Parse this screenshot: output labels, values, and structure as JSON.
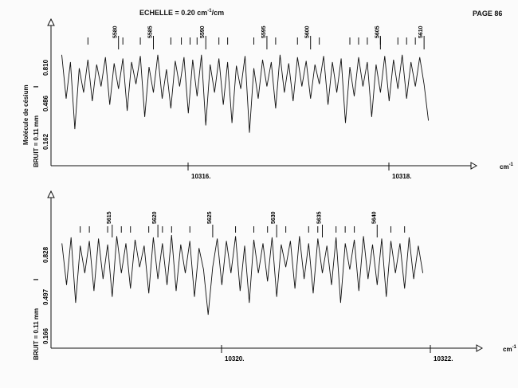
{
  "page_label": "PAGE 86",
  "scale_label": "ECHELLE = 0.20 cm",
  "scale_exponent": "-1",
  "scale_unit_suffix": "/cm",
  "molecule_label": "Molécule de césium",
  "chart_data": [
    {
      "type": "line",
      "noise_label": "BRUIT = 0.11 mm",
      "intensity_marker": "I",
      "y_tick_labels": [
        "0.810",
        "0.486",
        "0.162"
      ],
      "x_tick_labels": [
        "10316.",
        "10318."
      ],
      "x_unit": "cm",
      "x_unit_exponent": "-1",
      "xlim": [
        10314.2,
        10318.7
      ],
      "ylim": [
        0.1,
        0.95
      ],
      "ref_numbers": [
        {
          "label": "5580",
          "x": 10314.9
        },
        {
          "label": "5585",
          "x": 10315.3
        },
        {
          "label": "5590",
          "x": 10315.9
        },
        {
          "label": "5595",
          "x": 10316.6
        },
        {
          "label": "5600",
          "x": 10317.1
        },
        {
          "label": "5605",
          "x": 10317.9
        },
        {
          "label": "5610",
          "x": 10318.4
        }
      ],
      "marker_positions": [
        10314.55,
        10314.95,
        10315.15,
        10315.5,
        10315.62,
        10315.72,
        10315.8,
        10316.05,
        10316.15,
        10316.45,
        10316.7,
        10316.95,
        10317.2,
        10317.55,
        10317.65,
        10317.75,
        10317.9,
        10318.1,
        10318.2,
        10318.3
      ],
      "x": [
        10314.25,
        10314.3,
        10314.35,
        10314.4,
        10314.45,
        10314.5,
        10314.55,
        10314.6,
        10314.65,
        10314.7,
        10314.75,
        10314.8,
        10314.85,
        10314.9,
        10314.95,
        10315.0,
        10315.05,
        10315.1,
        10315.15,
        10315.2,
        10315.25,
        10315.3,
        10315.35,
        10315.4,
        10315.45,
        10315.5,
        10315.55,
        10315.6,
        10315.65,
        10315.7,
        10315.75,
        10315.8,
        10315.85,
        10315.9,
        10315.95,
        10316.0,
        10316.05,
        10316.1,
        10316.15,
        10316.2,
        10316.25,
        10316.3,
        10316.35,
        10316.4,
        10316.45,
        10316.5,
        10316.55,
        10316.6,
        10316.65,
        10316.7,
        10316.75,
        10316.8,
        10316.85,
        10316.9,
        10316.95,
        10317.0,
        10317.05,
        10317.1,
        10317.15,
        10317.2,
        10317.25,
        10317.3,
        10317.35,
        10317.4,
        10317.45,
        10317.5,
        10317.55,
        10317.6,
        10317.65,
        10317.7,
        10317.75,
        10317.8,
        10317.85,
        10317.9,
        10317.95,
        10318.0,
        10318.05,
        10318.1,
        10318.15,
        10318.2,
        10318.25,
        10318.3,
        10318.35,
        10318.4,
        10318.45
      ],
      "y": [
        0.86,
        0.5,
        0.8,
        0.25,
        0.75,
        0.55,
        0.82,
        0.48,
        0.78,
        0.6,
        0.84,
        0.45,
        0.79,
        0.58,
        0.83,
        0.4,
        0.8,
        0.62,
        0.85,
        0.35,
        0.76,
        0.55,
        0.86,
        0.5,
        0.74,
        0.42,
        0.81,
        0.6,
        0.84,
        0.38,
        0.82,
        0.52,
        0.86,
        0.28,
        0.78,
        0.55,
        0.83,
        0.45,
        0.8,
        0.3,
        0.77,
        0.58,
        0.85,
        0.22,
        0.75,
        0.5,
        0.82,
        0.6,
        0.8,
        0.42,
        0.86,
        0.55,
        0.79,
        0.48,
        0.84,
        0.6,
        0.81,
        0.5,
        0.78,
        0.62,
        0.85,
        0.45,
        0.8,
        0.55,
        0.83,
        0.3,
        0.76,
        0.52,
        0.84,
        0.6,
        0.8,
        0.35,
        0.78,
        0.55,
        0.85,
        0.48,
        0.82,
        0.58,
        0.86,
        0.5,
        0.8,
        0.6,
        0.84,
        0.62,
        0.32
      ]
    },
    {
      "type": "line",
      "noise_label": "BRUIT = 0.11 mm",
      "intensity_marker": "I",
      "y_tick_labels": [
        "0.828",
        "0.497",
        "0.166"
      ],
      "x_tick_labels": [
        "10320.",
        "10322."
      ],
      "x_unit": "cm",
      "x_unit_exponent": "-1",
      "xlim": [
        10318.3,
        10322.6
      ],
      "ylim": [
        0.1,
        0.95
      ],
      "ref_numbers": [
        {
          "label": "5615",
          "x": 10318.9
        },
        {
          "label": "5620",
          "x": 10319.4
        },
        {
          "label": "5625",
          "x": 10320.0
        },
        {
          "label": "5630",
          "x": 10320.7
        },
        {
          "label": "5635",
          "x": 10321.2
        },
        {
          "label": "5640",
          "x": 10321.8
        }
      ],
      "marker_positions": [
        10318.55,
        10318.65,
        10318.85,
        10319.0,
        10319.1,
        10319.3,
        10319.45,
        10319.55,
        10319.75,
        10320.25,
        10320.45,
        10320.6,
        10320.8,
        10321.05,
        10321.15,
        10321.35,
        10321.45,
        10321.55,
        10321.95,
        10322.1
      ],
      "x": [
        10318.35,
        10318.4,
        10318.45,
        10318.5,
        10318.55,
        10318.6,
        10318.65,
        10318.7,
        10318.75,
        10318.8,
        10318.85,
        10318.9,
        10318.95,
        10319.0,
        10319.05,
        10319.1,
        10319.15,
        10319.2,
        10319.25,
        10319.3,
        10319.35,
        10319.4,
        10319.45,
        10319.5,
        10319.55,
        10319.6,
        10319.65,
        10319.7,
        10319.75,
        10319.8,
        10319.85,
        10319.9,
        10319.95,
        10320.0,
        10320.05,
        10320.1,
        10320.15,
        10320.2,
        10320.25,
        10320.3,
        10320.35,
        10320.4,
        10320.45,
        10320.5,
        10320.55,
        10320.6,
        10320.65,
        10320.7,
        10320.75,
        10320.8,
        10320.85,
        10320.9,
        10320.95,
        10321.0,
        10321.05,
        10321.1,
        10321.15,
        10321.2,
        10321.25,
        10321.3,
        10321.35,
        10321.4,
        10321.45,
        10321.5,
        10321.55,
        10321.6,
        10321.65,
        10321.7,
        10321.75,
        10321.8,
        10321.85,
        10321.9,
        10321.95,
        10322.0,
        10322.05,
        10322.1,
        10322.15,
        10322.2,
        10322.25,
        10322.3
      ],
      "y": [
        0.8,
        0.45,
        0.85,
        0.3,
        0.78,
        0.55,
        0.82,
        0.4,
        0.84,
        0.5,
        0.79,
        0.35,
        0.86,
        0.55,
        0.8,
        0.42,
        0.83,
        0.6,
        0.78,
        0.38,
        0.85,
        0.5,
        0.8,
        0.45,
        0.87,
        0.4,
        0.79,
        0.55,
        0.82,
        0.35,
        0.76,
        0.58,
        0.2,
        0.6,
        0.84,
        0.45,
        0.82,
        0.55,
        0.86,
        0.4,
        0.78,
        0.3,
        0.83,
        0.55,
        0.8,
        0.48,
        0.85,
        0.35,
        0.79,
        0.6,
        0.82,
        0.42,
        0.86,
        0.5,
        0.8,
        0.38,
        0.84,
        0.55,
        0.78,
        0.45,
        0.85,
        0.3,
        0.8,
        0.58,
        0.83,
        0.4,
        0.86,
        0.5,
        0.79,
        0.45,
        0.84,
        0.35,
        0.82,
        0.55,
        0.8,
        0.42,
        0.85,
        0.5,
        0.78,
        0.55
      ]
    }
  ]
}
